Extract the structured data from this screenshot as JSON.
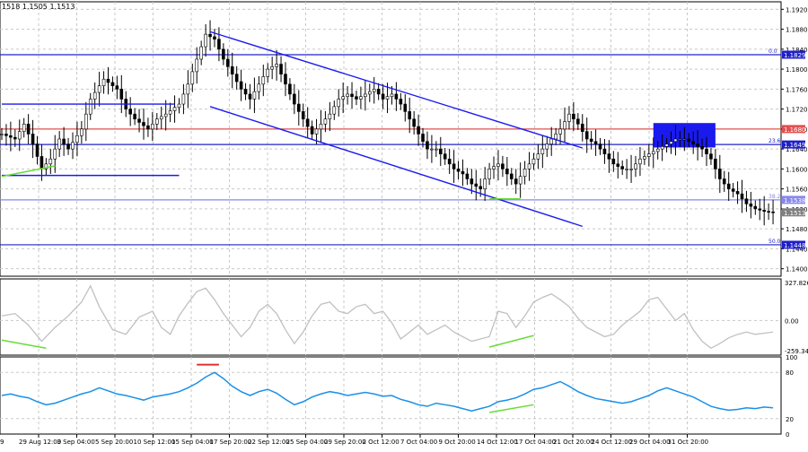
{
  "header": {
    "symbol_info": "1518 1.1505 1.1513"
  },
  "colors": {
    "background": "#ffffff",
    "grid": "#c8c8c8",
    "frame": "#000000",
    "candle": "#000000",
    "hline": "#2020c8",
    "hline_red": "#e05050",
    "hline_light": "#8888ee",
    "channel": "#1a1aee",
    "zone": "#1a1aee",
    "divergence": "#66dd33",
    "cci_line": "#c0c0c0",
    "rsi_line": "#1a90e8",
    "rsi_mark": "#e03030"
  },
  "price_axis": {
    "ticks": [
      "1.1920",
      "1.1880",
      "1.1840",
      "1.1800",
      "1.1760",
      "1.1720",
      "1.1680",
      "1.1640",
      "1.1600",
      "1.1560",
      "1.1520",
      "1.1480",
      "1.1440",
      "1.1400"
    ],
    "level_labels": [
      {
        "text": "1.1829",
        "level": "0.0",
        "value": 1.1829,
        "color": "#2020c8"
      },
      {
        "text": "1.1680",
        "level": "",
        "value": 1.168,
        "color": "#e05050"
      },
      {
        "text": "1.1649",
        "level": "23.6",
        "value": 1.1649,
        "color": "#2020c8"
      },
      {
        "text": "1.1538",
        "level": "38.2",
        "value": 1.1538,
        "color": "#8888ee"
      },
      {
        "text": "1.1513",
        "level": "",
        "value": 1.1513,
        "color": "#808080"
      },
      {
        "text": "1.1448",
        "level": "50.0",
        "value": 1.1448,
        "color": "#2020c8"
      }
    ]
  },
  "time_axis": {
    "labels": [
      "29 Aug 12:00",
      "3 Sep 04:00",
      "5 Sep 20:00",
      "10 Sep 12:00",
      "15 Sep 04:00",
      "17 Sep 20:00",
      "22 Sep 12:00",
      "25 Sep 04:00",
      "29 Sep 20:00",
      "2 Oct 12:00",
      "7 Oct 04:00",
      "9 Oct 20:00",
      "14 Oct 12:00",
      "17 Oct 04:00",
      "21 Oct 20:00",
      "24 Oct 12:00",
      "29 Oct 04:00",
      "31 Oct 20:00"
    ],
    "first_label_fragment": "9"
  },
  "cci_axis": {
    "ticks": [
      "327.826",
      "0.00",
      "-259.342"
    ]
  },
  "rsi_axis": {
    "ticks": [
      "100",
      "80",
      "20",
      "0"
    ]
  },
  "chart_data": {
    "type": "candlestick",
    "ylim": [
      1.1385,
      1.1935
    ],
    "x_range": [
      0,
      175
    ],
    "close_series": [
      [
        0,
        1.167
      ],
      [
        3,
        1.166
      ],
      [
        5,
        1.169
      ],
      [
        7,
        1.165
      ],
      [
        9,
        1.16
      ],
      [
        11,
        1.162
      ],
      [
        13,
        1.166
      ],
      [
        15,
        1.164
      ],
      [
        18,
        1.168
      ],
      [
        20,
        1.174
      ],
      [
        23,
        1.178
      ],
      [
        26,
        1.176
      ],
      [
        28,
        1.172
      ],
      [
        30,
        1.17
      ],
      [
        33,
        1.168
      ],
      [
        35,
        1.17
      ],
      [
        37,
        1.171
      ],
      [
        40,
        1.173
      ],
      [
        42,
        1.177
      ],
      [
        44,
        1.182
      ],
      [
        46,
        1.187
      ],
      [
        48,
        1.186
      ],
      [
        50,
        1.182
      ],
      [
        52,
        1.179
      ],
      [
        54,
        1.176
      ],
      [
        56,
        1.174
      ],
      [
        58,
        1.177
      ],
      [
        60,
        1.18
      ],
      [
        62,
        1.181
      ],
      [
        64,
        1.177
      ],
      [
        66,
        1.173
      ],
      [
        68,
        1.17
      ],
      [
        70,
        1.167
      ],
      [
        72,
        1.169
      ],
      [
        74,
        1.171
      ],
      [
        76,
        1.174
      ],
      [
        78,
        1.175
      ],
      [
        80,
        1.174
      ],
      [
        82,
        1.175
      ],
      [
        84,
        1.176
      ],
      [
        86,
        1.174
      ],
      [
        88,
        1.175
      ],
      [
        90,
        1.173
      ],
      [
        92,
        1.17
      ],
      [
        94,
        1.167
      ],
      [
        96,
        1.164
      ],
      [
        98,
        1.164
      ],
      [
        100,
        1.162
      ],
      [
        102,
        1.16
      ],
      [
        104,
        1.159
      ],
      [
        106,
        1.157
      ],
      [
        108,
        1.156
      ],
      [
        110,
        1.16
      ],
      [
        112,
        1.161
      ],
      [
        114,
        1.159
      ],
      [
        116,
        1.157
      ],
      [
        118,
        1.16
      ],
      [
        120,
        1.162
      ],
      [
        122,
        1.164
      ],
      [
        124,
        1.166
      ],
      [
        126,
        1.168
      ],
      [
        128,
        1.171
      ],
      [
        130,
        1.169
      ],
      [
        132,
        1.166
      ],
      [
        134,
        1.165
      ],
      [
        136,
        1.163
      ],
      [
        138,
        1.161
      ],
      [
        140,
        1.16
      ],
      [
        142,
        1.16
      ],
      [
        144,
        1.162
      ],
      [
        146,
        1.163
      ],
      [
        148,
        1.164
      ],
      [
        150,
        1.165
      ],
      [
        152,
        1.166
      ],
      [
        154,
        1.166
      ],
      [
        156,
        1.165
      ],
      [
        158,
        1.164
      ],
      [
        160,
        1.162
      ],
      [
        162,
        1.158
      ],
      [
        164,
        1.156
      ],
      [
        166,
        1.155
      ],
      [
        168,
        1.153
      ],
      [
        170,
        1.152
      ],
      [
        172,
        1.1515
      ],
      [
        174,
        1.1513
      ]
    ],
    "horizontal_levels": [
      {
        "value": 1.1829,
        "color": "#2020c8"
      },
      {
        "value": 1.168,
        "color": "#e05050"
      },
      {
        "value": 1.1649,
        "color": "#2020c8"
      },
      {
        "value": 1.1538,
        "color": "#8888ee"
      },
      {
        "value": 1.1448,
        "color": "#2020c8"
      }
    ],
    "trendlines": [
      {
        "name": "channel-upper",
        "x1": 47,
        "y1": 1.1875,
        "x2": 131,
        "y2": 1.1642
      },
      {
        "name": "channel-lower",
        "x1": 47,
        "y1": 1.1725,
        "x2": 131,
        "y2": 1.1485
      },
      {
        "name": "resistance-left",
        "x1": 0,
        "y1": 1.173,
        "x2": 39,
        "y2": 1.173
      },
      {
        "name": "support-left",
        "x1": 0,
        "y1": 1.1587,
        "x2": 40,
        "y2": 1.1587
      }
    ],
    "zones": [
      {
        "name": "resistance-zone",
        "x1": 147,
        "y1": 1.1692,
        "x2": 161,
        "y2": 1.1643
      }
    ],
    "price_divergences": [
      {
        "x1": 0,
        "y1": 1.1585,
        "x2": 12,
        "y2": 1.1606
      },
      {
        "x1": 110,
        "y1": 1.154,
        "x2": 117,
        "y2": 1.154
      }
    ],
    "cci": {
      "ylim": [
        -300,
        360
      ],
      "values": [
        [
          0,
          40
        ],
        [
          3,
          60
        ],
        [
          6,
          -40
        ],
        [
          9,
          -180
        ],
        [
          12,
          -60
        ],
        [
          15,
          40
        ],
        [
          18,
          160
        ],
        [
          20,
          300
        ],
        [
          22,
          120
        ],
        [
          25,
          -80
        ],
        [
          28,
          -120
        ],
        [
          31,
          30
        ],
        [
          34,
          80
        ],
        [
          36,
          -60
        ],
        [
          38,
          -120
        ],
        [
          40,
          40
        ],
        [
          42,
          150
        ],
        [
          44,
          250
        ],
        [
          46,
          280
        ],
        [
          48,
          180
        ],
        [
          50,
          60
        ],
        [
          52,
          -40
        ],
        [
          54,
          -140
        ],
        [
          56,
          -60
        ],
        [
          58,
          80
        ],
        [
          60,
          140
        ],
        [
          62,
          60
        ],
        [
          64,
          -80
        ],
        [
          66,
          -200
        ],
        [
          68,
          -100
        ],
        [
          70,
          40
        ],
        [
          72,
          140
        ],
        [
          74,
          160
        ],
        [
          76,
          80
        ],
        [
          78,
          60
        ],
        [
          80,
          120
        ],
        [
          82,
          140
        ],
        [
          84,
          60
        ],
        [
          86,
          80
        ],
        [
          88,
          -20
        ],
        [
          90,
          -160
        ],
        [
          92,
          -100
        ],
        [
          94,
          -40
        ],
        [
          96,
          -120
        ],
        [
          98,
          -80
        ],
        [
          100,
          -40
        ],
        [
          102,
          -100
        ],
        [
          104,
          -140
        ],
        [
          106,
          -180
        ],
        [
          108,
          -160
        ],
        [
          110,
          -140
        ],
        [
          112,
          80
        ],
        [
          114,
          60
        ],
        [
          116,
          -60
        ],
        [
          118,
          40
        ],
        [
          120,
          160
        ],
        [
          122,
          200
        ],
        [
          124,
          230
        ],
        [
          126,
          180
        ],
        [
          128,
          120
        ],
        [
          130,
          20
        ],
        [
          132,
          -60
        ],
        [
          134,
          -100
        ],
        [
          136,
          -140
        ],
        [
          138,
          -120
        ],
        [
          140,
          -40
        ],
        [
          142,
          20
        ],
        [
          144,
          80
        ],
        [
          146,
          180
        ],
        [
          148,
          200
        ],
        [
          150,
          100
        ],
        [
          152,
          0
        ],
        [
          154,
          60
        ],
        [
          156,
          -80
        ],
        [
          158,
          -180
        ],
        [
          160,
          -240
        ],
        [
          162,
          -200
        ],
        [
          164,
          -150
        ],
        [
          166,
          -120
        ],
        [
          168,
          -100
        ],
        [
          170,
          -120
        ],
        [
          172,
          -110
        ],
        [
          174,
          -100
        ]
      ],
      "divergences": [
        {
          "x1": 0,
          "y1": -170,
          "x2": 10,
          "y2": -240
        },
        {
          "x1": 110,
          "y1": -230,
          "x2": 120,
          "y2": -130
        }
      ]
    },
    "rsi": {
      "ylim": [
        0,
        100
      ],
      "values": [
        [
          0,
          50
        ],
        [
          2,
          52
        ],
        [
          4,
          49
        ],
        [
          6,
          47
        ],
        [
          8,
          42
        ],
        [
          10,
          38
        ],
        [
          12,
          40
        ],
        [
          14,
          44
        ],
        [
          16,
          48
        ],
        [
          18,
          52
        ],
        [
          20,
          55
        ],
        [
          22,
          60
        ],
        [
          24,
          56
        ],
        [
          26,
          52
        ],
        [
          28,
          50
        ],
        [
          30,
          47
        ],
        [
          32,
          44
        ],
        [
          34,
          48
        ],
        [
          36,
          50
        ],
        [
          38,
          52
        ],
        [
          40,
          55
        ],
        [
          42,
          60
        ],
        [
          44,
          66
        ],
        [
          46,
          74
        ],
        [
          48,
          80
        ],
        [
          50,
          72
        ],
        [
          52,
          62
        ],
        [
          54,
          55
        ],
        [
          56,
          50
        ],
        [
          58,
          55
        ],
        [
          60,
          58
        ],
        [
          62,
          53
        ],
        [
          64,
          45
        ],
        [
          66,
          38
        ],
        [
          68,
          42
        ],
        [
          70,
          48
        ],
        [
          72,
          52
        ],
        [
          74,
          55
        ],
        [
          76,
          53
        ],
        [
          78,
          50
        ],
        [
          80,
          52
        ],
        [
          82,
          54
        ],
        [
          84,
          52
        ],
        [
          86,
          49
        ],
        [
          88,
          50
        ],
        [
          90,
          45
        ],
        [
          92,
          42
        ],
        [
          94,
          38
        ],
        [
          96,
          36
        ],
        [
          98,
          40
        ],
        [
          100,
          38
        ],
        [
          102,
          36
        ],
        [
          104,
          33
        ],
        [
          106,
          30
        ],
        [
          108,
          33
        ],
        [
          110,
          36
        ],
        [
          112,
          42
        ],
        [
          114,
          44
        ],
        [
          116,
          47
        ],
        [
          118,
          52
        ],
        [
          120,
          58
        ],
        [
          122,
          60
        ],
        [
          124,
          64
        ],
        [
          126,
          68
        ],
        [
          128,
          62
        ],
        [
          130,
          55
        ],
        [
          132,
          50
        ],
        [
          134,
          46
        ],
        [
          136,
          44
        ],
        [
          138,
          42
        ],
        [
          140,
          40
        ],
        [
          142,
          42
        ],
        [
          144,
          46
        ],
        [
          146,
          50
        ],
        [
          148,
          56
        ],
        [
          150,
          60
        ],
        [
          152,
          56
        ],
        [
          154,
          52
        ],
        [
          156,
          48
        ],
        [
          158,
          42
        ],
        [
          160,
          36
        ],
        [
          162,
          33
        ],
        [
          164,
          31
        ],
        [
          166,
          32
        ],
        [
          168,
          34
        ],
        [
          170,
          33
        ],
        [
          172,
          35
        ],
        [
          174,
          34
        ]
      ],
      "divergences": [
        {
          "x1": 110,
          "y1": 28,
          "x2": 120,
          "y2": 38
        }
      ],
      "marks": [
        {
          "x1": 44,
          "x2": 49,
          "value": 90
        }
      ]
    }
  }
}
